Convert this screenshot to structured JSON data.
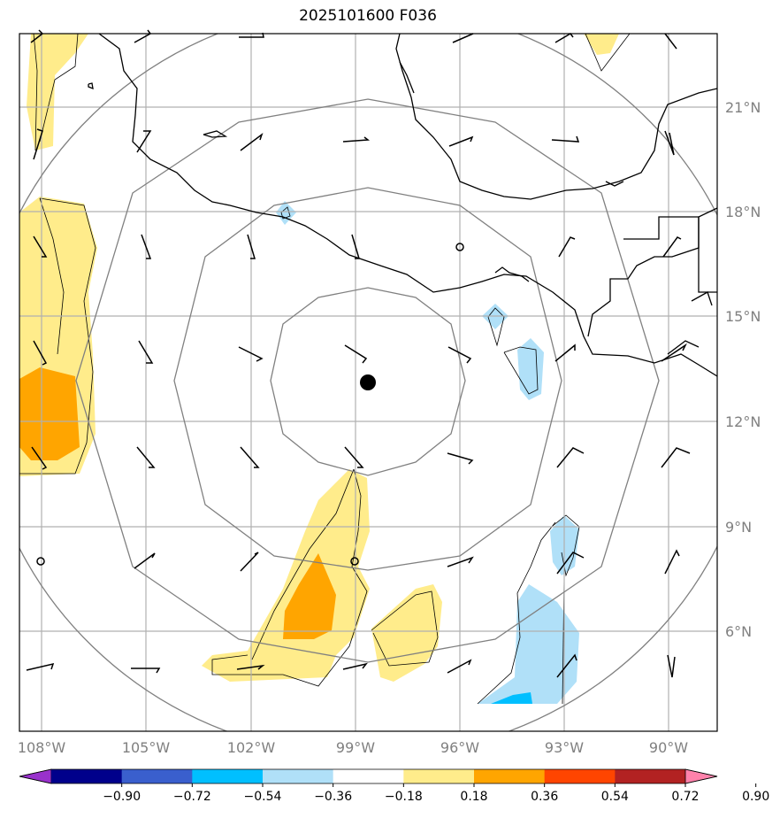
{
  "title": "2025101600 F036",
  "lon_labels": [
    "108°W",
    "105°W",
    "102°W",
    "99°W",
    "96°W",
    "93°W",
    "90°W"
  ],
  "lat_labels": [
    "21°N",
    "18°N",
    "15°N",
    "12°N",
    "9°N",
    "6°N"
  ],
  "colorbar": {
    "ticks": [
      "−0.90",
      "−0.72",
      "−0.54",
      "−0.36",
      "−0.18",
      "0.18",
      "0.36",
      "0.54",
      "0.72",
      "0.90"
    ],
    "colors": [
      "#9932cc",
      "#00008b",
      "#3a5fcd",
      "#00bfff",
      "#b0e0f8",
      "#ffffff",
      "#ffec8b",
      "#ffa500",
      "#ff4500",
      "#b22222",
      "#ff82ab"
    ]
  },
  "colors": {
    "grid": "#b0b0b0",
    "range_ring": "#808080",
    "coast": "#000000",
    "shade_pos_1": "#ffec8b",
    "shade_pos_2": "#ffa500",
    "shade_neg_1": "#b0e0f8",
    "shade_neg_2": "#00bfff"
  },
  "storm_center": {
    "lat": "13.1°N",
    "lon": "98.6°W"
  }
}
